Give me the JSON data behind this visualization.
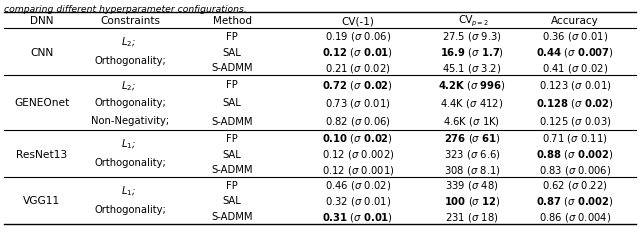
{
  "title_text": "comparing different hyperparameter configurations.",
  "bg_color": "#ffffff",
  "font_size": 7.2,
  "rows": [
    {
      "dnn": "CNN",
      "constraints": [
        "$L_2$;",
        "Orthogonality;"
      ],
      "methods": [
        "FP",
        "SAL",
        "S-ADMM"
      ],
      "cv1": [
        {
          "val": "0.19",
          "std": "0.06",
          "bold_val": false,
          "bold_std": false
        },
        {
          "val": "0.12",
          "std": "0.01",
          "bold_val": true,
          "bold_std": true
        },
        {
          "val": "0.21",
          "std": "0.02",
          "bold_val": false,
          "bold_std": false
        }
      ],
      "cv2": [
        {
          "val": "27.5",
          "std": "9.3",
          "bold_val": false,
          "bold_std": false
        },
        {
          "val": "16.9",
          "std": "1.7",
          "bold_val": true,
          "bold_std": true
        },
        {
          "val": "45.1",
          "std": "3.2",
          "bold_val": false,
          "bold_std": false
        }
      ],
      "acc": [
        {
          "val": "0.36",
          "std": "0.01",
          "bold_val": false,
          "bold_std": false
        },
        {
          "val": "0.44",
          "std": "0.007",
          "bold_val": true,
          "bold_std": true
        },
        {
          "val": "0.41",
          "std": "0.02",
          "bold_val": false,
          "bold_std": false
        }
      ]
    },
    {
      "dnn": "GENEOnet",
      "constraints": [
        "$L_2$;",
        "Orthogonality;",
        "Non-Negativity;"
      ],
      "methods": [
        "FP",
        "SAL",
        "S-ADMM"
      ],
      "cv1": [
        {
          "val": "0.72",
          "std": "0.02",
          "bold_val": true,
          "bold_std": true
        },
        {
          "val": "0.73",
          "std": "0.01",
          "bold_val": false,
          "bold_std": false
        },
        {
          "val": "0.82",
          "std": "0.06",
          "bold_val": false,
          "bold_std": false
        }
      ],
      "cv2": [
        {
          "val": "4.2K",
          "std": "996",
          "bold_val": true,
          "bold_std": true
        },
        {
          "val": "4.4K",
          "std": "412",
          "bold_val": false,
          "bold_std": false
        },
        {
          "val": "4.6K",
          "std": "1K",
          "bold_val": false,
          "bold_std": false
        }
      ],
      "acc": [
        {
          "val": "0.123",
          "std": "0.01",
          "bold_val": false,
          "bold_std": false
        },
        {
          "val": "0.128",
          "std": "0.02",
          "bold_val": true,
          "bold_std": true
        },
        {
          "val": "0.125",
          "std": "0.03",
          "bold_val": false,
          "bold_std": false
        }
      ]
    },
    {
      "dnn": "ResNet13",
      "constraints": [
        "$L_1$;",
        "Orthogonality;"
      ],
      "methods": [
        "FP",
        "SAL",
        "S-ADMM"
      ],
      "cv1": [
        {
          "val": "0.10",
          "std": "0.02",
          "bold_val": true,
          "bold_std": true
        },
        {
          "val": "0.12",
          "std": "0.002",
          "bold_val": false,
          "bold_std": false
        },
        {
          "val": "0.12",
          "std": "0.001",
          "bold_val": false,
          "bold_std": false
        }
      ],
      "cv2": [
        {
          "val": "276",
          "std": "61",
          "bold_val": true,
          "bold_std": true
        },
        {
          "val": "323",
          "std": "6.6",
          "bold_val": false,
          "bold_std": false
        },
        {
          "val": "308",
          "std": "8.1",
          "bold_val": false,
          "bold_std": false
        }
      ],
      "acc": [
        {
          "val": "0.71",
          "std": "0.11",
          "bold_val": false,
          "bold_std": false
        },
        {
          "val": "0.88",
          "std": "0.002",
          "bold_val": true,
          "bold_std": true
        },
        {
          "val": "0.83",
          "std": "0.006",
          "bold_val": false,
          "bold_std": false
        }
      ]
    },
    {
      "dnn": "VGG11",
      "constraints": [
        "$L_1$;",
        "Orthogonality;"
      ],
      "methods": [
        "FP",
        "SAL",
        "S-ADMM"
      ],
      "cv1": [
        {
          "val": "0.46",
          "std": "0.02",
          "bold_val": false,
          "bold_std": false
        },
        {
          "val": "0.32",
          "std": "0.01",
          "bold_val": false,
          "bold_std": false
        },
        {
          "val": "0.31",
          "std": "0.01",
          "bold_val": true,
          "bold_std": true
        }
      ],
      "cv2": [
        {
          "val": "339",
          "std": "48",
          "bold_val": false,
          "bold_std": false
        },
        {
          "val": "100",
          "std": "12",
          "bold_val": true,
          "bold_std": true
        },
        {
          "val": "231",
          "std": "18",
          "bold_val": false,
          "bold_std": false
        }
      ],
      "acc": [
        {
          "val": "0.62",
          "std": "0.22",
          "bold_val": false,
          "bold_std": false
        },
        {
          "val": "0.87",
          "std": "0.002",
          "bold_val": true,
          "bold_std": true
        },
        {
          "val": "0.86",
          "std": "0.004",
          "bold_val": false,
          "bold_std": false
        }
      ]
    }
  ]
}
